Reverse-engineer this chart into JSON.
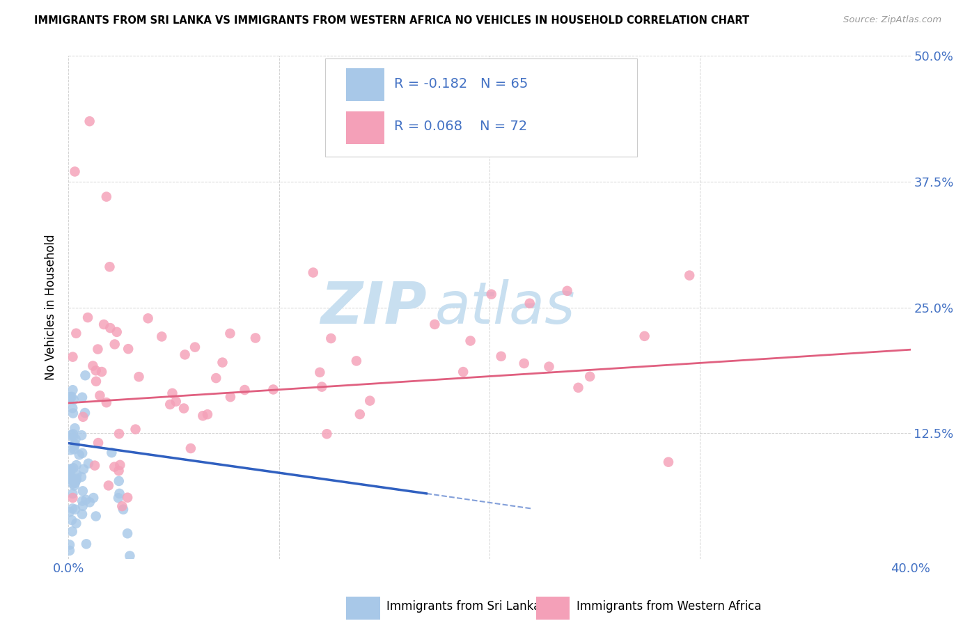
{
  "title": "IMMIGRANTS FROM SRI LANKA VS IMMIGRANTS FROM WESTERN AFRICA NO VEHICLES IN HOUSEHOLD CORRELATION CHART",
  "source": "Source: ZipAtlas.com",
  "ylabel": "No Vehicles in Household",
  "color_sri_lanka": "#a8c8e8",
  "color_western_africa": "#f4a0b8",
  "color_line_sri_lanka": "#3060c0",
  "color_line_western_africa": "#e06080",
  "xlim": [
    0.0,
    0.4
  ],
  "ylim": [
    0.0,
    0.5
  ],
  "watermark_color": "#c8dff0",
  "grid_color": "#c8c8c8",
  "tick_color": "#4472c4",
  "legend_text_color": "#4472c4",
  "wa_line_start_x": 0.0,
  "wa_line_start_y": 0.155,
  "wa_line_end_x": 0.4,
  "wa_line_end_y": 0.208,
  "sl_line_start_x": 0.0,
  "sl_line_start_y": 0.115,
  "sl_line_end_x": 0.17,
  "sl_line_end_y": 0.065,
  "sl_line_dash_end_x": 0.22,
  "sl_line_dash_end_y": 0.05
}
